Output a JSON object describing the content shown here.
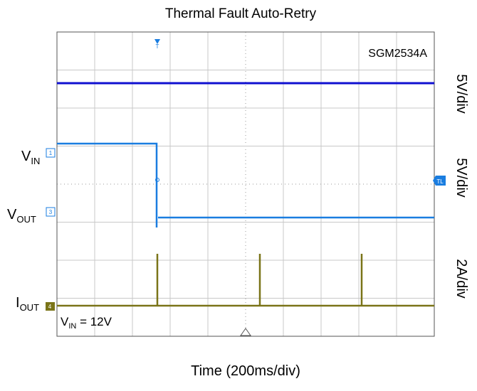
{
  "title": "Thermal Fault Auto-Retry",
  "x_label": "Time (200ms/div)",
  "annotation": "SGM2534A",
  "scales": [
    "5V/div",
    "5V/div",
    "2A/div"
  ],
  "channels": [
    {
      "main": "V",
      "sub": "IN",
      "tag": "1"
    },
    {
      "main": "V",
      "sub": "OUT",
      "tag": "3"
    },
    {
      "main": "I",
      "sub": "OUT",
      "tag": "4"
    }
  ],
  "condition": {
    "main": "V",
    "sub": "IN",
    "rest": " = 12V"
  },
  "markers": {
    "trigger": "T",
    "level": "TL"
  }
}
